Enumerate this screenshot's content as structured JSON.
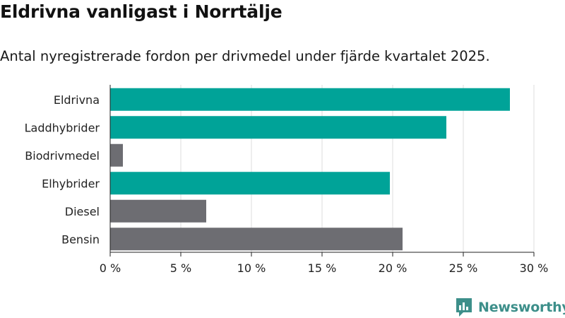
{
  "header": {
    "title": "Eldrivna vanligast i Norrtälje",
    "subtitle": "Antal nyregistrerade fordon per drivmedel under fjärde kvartalet 2025."
  },
  "brand": {
    "name": "Newsworthy"
  },
  "colors": {
    "highlight": "#00a398",
    "default": "#6d6d72",
    "grid": "#dddddd",
    "brand": "#3d8f8a"
  },
  "chart_data": {
    "type": "bar",
    "orientation": "horizontal",
    "title": "Eldrivna vanligast i Norrtälje",
    "subtitle": "Antal nyregistrerade fordon per drivmedel under fjärde kvartalet 2025.",
    "categories": [
      "Eldrivna",
      "Laddhybrider",
      "Biodrivmedel",
      "Elhybrider",
      "Diesel",
      "Bensin"
    ],
    "values": [
      28.3,
      23.8,
      0.9,
      19.8,
      6.8,
      20.7
    ],
    "highlight": [
      true,
      true,
      false,
      true,
      false,
      false
    ],
    "xlim": [
      0,
      30
    ],
    "xticks": [
      0,
      5,
      10,
      15,
      20,
      25,
      30
    ],
    "xtick_labels": [
      "0 %",
      "5 %",
      "10 %",
      "15 %",
      "20 %",
      "25 %",
      "30 %"
    ],
    "xlabel": "",
    "ylabel": "",
    "grid": true
  }
}
